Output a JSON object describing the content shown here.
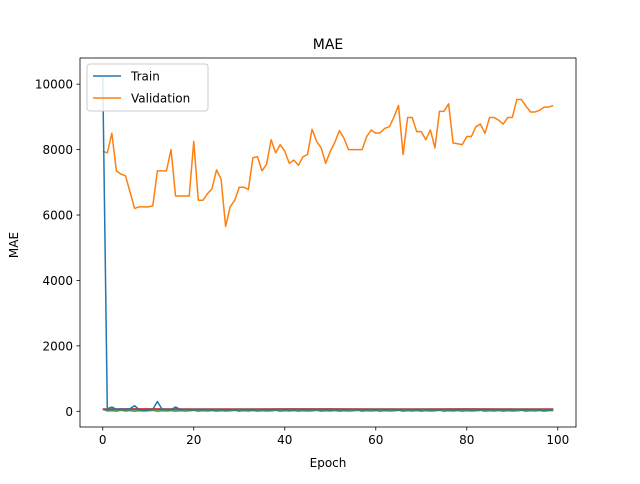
{
  "chart_data": {
    "type": "line",
    "title": "MAE",
    "xlabel": "Epoch",
    "ylabel": "MAE",
    "xlim": [
      -5,
      104
    ],
    "ylim": [
      -480,
      10800
    ],
    "xticks": [
      0,
      20,
      40,
      60,
      80,
      100
    ],
    "yticks": [
      0,
      2000,
      4000,
      6000,
      8000,
      10000
    ],
    "grid": false,
    "legend": {
      "placement": "top-left",
      "entries": [
        "Train",
        "Validation"
      ]
    },
    "series": [
      {
        "name": "Train",
        "color": "#1f77b4",
        "x": [
          0,
          1,
          2,
          3,
          4,
          5,
          6,
          7,
          8,
          9,
          10,
          11,
          12,
          13,
          14,
          15,
          16,
          17,
          18,
          19,
          20,
          21,
          22,
          23,
          24,
          25,
          26,
          27,
          28,
          29,
          30,
          31,
          32,
          33,
          34,
          35,
          36,
          37,
          38,
          39,
          40,
          41,
          42,
          43,
          44,
          45,
          46,
          47,
          48,
          49,
          50,
          51,
          52,
          53,
          54,
          55,
          56,
          57,
          58,
          59,
          60,
          61,
          62,
          63,
          64,
          65,
          66,
          67,
          68,
          69,
          70,
          71,
          72,
          73,
          74,
          75,
          76,
          77,
          78,
          79,
          80,
          81,
          82,
          83,
          84,
          85,
          86,
          87,
          88,
          89,
          90,
          91,
          92,
          93,
          94,
          95,
          96,
          97,
          98,
          99
        ],
        "y": [
          10200,
          80,
          130,
          60,
          70,
          55,
          80,
          170,
          50,
          40,
          45,
          60,
          300,
          70,
          60,
          50,
          130,
          60,
          55,
          50,
          55,
          50,
          60,
          50,
          55,
          50,
          60,
          45,
          50,
          55,
          50,
          60,
          50,
          55,
          50,
          60,
          50,
          55,
          50,
          60,
          50,
          55,
          50,
          60,
          50,
          55,
          50,
          60,
          50,
          55,
          50,
          60,
          50,
          55,
          50,
          60,
          50,
          55,
          50,
          60,
          50,
          55,
          50,
          60,
          50,
          55,
          50,
          60,
          50,
          55,
          50,
          60,
          50,
          55,
          50,
          60,
          50,
          55,
          50,
          60,
          50,
          55,
          50,
          60,
          50,
          55,
          50,
          60,
          50,
          55,
          50,
          60,
          50,
          55,
          50,
          60,
          50,
          55,
          50,
          60
        ]
      },
      {
        "name": "Validation",
        "color": "#ff7f0e",
        "x": [
          0,
          1,
          2,
          3,
          4,
          5,
          6,
          7,
          8,
          9,
          10,
          11,
          12,
          13,
          14,
          15,
          16,
          17,
          18,
          19,
          20,
          21,
          22,
          23,
          24,
          25,
          26,
          27,
          28,
          29,
          30,
          31,
          32,
          33,
          34,
          35,
          36,
          37,
          38,
          39,
          40,
          41,
          42,
          43,
          44,
          45,
          46,
          47,
          48,
          49,
          50,
          51,
          52,
          53,
          54,
          55,
          56,
          57,
          58,
          59,
          60,
          61,
          62,
          63,
          64,
          65,
          66,
          67,
          68,
          69,
          70,
          71,
          72,
          73,
          74,
          75,
          76,
          77,
          78,
          79,
          80,
          81,
          82,
          83,
          84,
          85,
          86,
          87,
          88,
          89,
          90,
          91,
          92,
          93,
          94,
          95,
          96,
          97,
          98,
          99
        ],
        "y": [
          7950,
          7900,
          8500,
          7350,
          7250,
          7200,
          6700,
          6200,
          6250,
          6250,
          6250,
          6280,
          7350,
          7350,
          7350,
          8000,
          6580,
          6580,
          6580,
          6580,
          8250,
          6450,
          6450,
          6650,
          6800,
          7380,
          7100,
          5650,
          6250,
          6450,
          6850,
          6850,
          6780,
          7750,
          7780,
          7350,
          7550,
          8300,
          7900,
          8150,
          7950,
          7580,
          7680,
          7520,
          7780,
          7850,
          8620,
          8250,
          8050,
          7580,
          7950,
          8220,
          8580,
          8350,
          8000,
          8000,
          8000,
          8000,
          8400,
          8600,
          8500,
          8520,
          8650,
          8700,
          9000,
          9350,
          7850,
          8980,
          8980,
          8550,
          8550,
          8300,
          8600,
          8050,
          9170,
          9170,
          9400,
          8200,
          8180,
          8150,
          8400,
          8400,
          8700,
          8780,
          8500,
          8980,
          8980,
          8900,
          8780,
          8980,
          8980,
          9530,
          9530,
          9330,
          9150,
          9150,
          9200,
          9300,
          9300,
          9350
        ]
      },
      {
        "name": "",
        "color": "#d62728",
        "x": [
          0,
          10,
          20,
          30,
          40,
          50,
          60,
          70,
          80,
          90,
          99
        ],
        "y": [
          70,
          75,
          72,
          70,
          74,
          73,
          72,
          71,
          73,
          72,
          70
        ]
      },
      {
        "name": "",
        "color": "#2ca02c",
        "x": [
          0,
          1,
          2,
          3,
          4,
          5,
          6,
          7,
          8,
          9,
          10,
          11,
          12,
          13,
          14,
          15,
          16,
          17,
          18,
          19,
          20,
          21,
          22,
          23,
          24,
          25,
          26,
          27,
          28,
          29,
          30,
          31,
          32,
          33,
          34,
          35,
          36,
          37,
          38,
          39,
          40,
          41,
          42,
          43,
          44,
          45,
          46,
          47,
          48,
          49,
          50,
          51,
          52,
          53,
          54,
          55,
          56,
          57,
          58,
          59,
          60,
          61,
          62,
          63,
          64,
          65,
          66,
          67,
          68,
          69,
          70,
          71,
          72,
          73,
          74,
          75,
          76,
          77,
          78,
          79,
          80,
          81,
          82,
          83,
          84,
          85,
          86,
          87,
          88,
          89,
          90,
          91,
          92,
          93,
          94,
          95,
          96,
          97,
          98,
          99
        ],
        "y": [
          60,
          10,
          20,
          5,
          30,
          10,
          25,
          5,
          20,
          10,
          15,
          30,
          5,
          20,
          10,
          25,
          5,
          20,
          10,
          15,
          30,
          5,
          20,
          10,
          25,
          5,
          20,
          10,
          15,
          30,
          5,
          20,
          10,
          25,
          5,
          20,
          10,
          15,
          30,
          5,
          20,
          10,
          25,
          5,
          20,
          10,
          15,
          30,
          5,
          20,
          10,
          25,
          5,
          20,
          10,
          15,
          30,
          5,
          20,
          10,
          25,
          5,
          20,
          10,
          15,
          30,
          5,
          20,
          10,
          25,
          5,
          20,
          10,
          15,
          30,
          5,
          20,
          10,
          25,
          5,
          20,
          10,
          15,
          30,
          5,
          20,
          10,
          25,
          5,
          20,
          10,
          15,
          30,
          5,
          20,
          10,
          25,
          5,
          20,
          20
        ]
      },
      {
        "name": "",
        "color": "#9467bd",
        "x": [
          0,
          10,
          20,
          30,
          40,
          50,
          60,
          70,
          80,
          90,
          99
        ],
        "y": [
          55,
          55,
          55,
          55,
          55,
          55,
          55,
          55,
          55,
          55,
          55
        ]
      }
    ]
  }
}
